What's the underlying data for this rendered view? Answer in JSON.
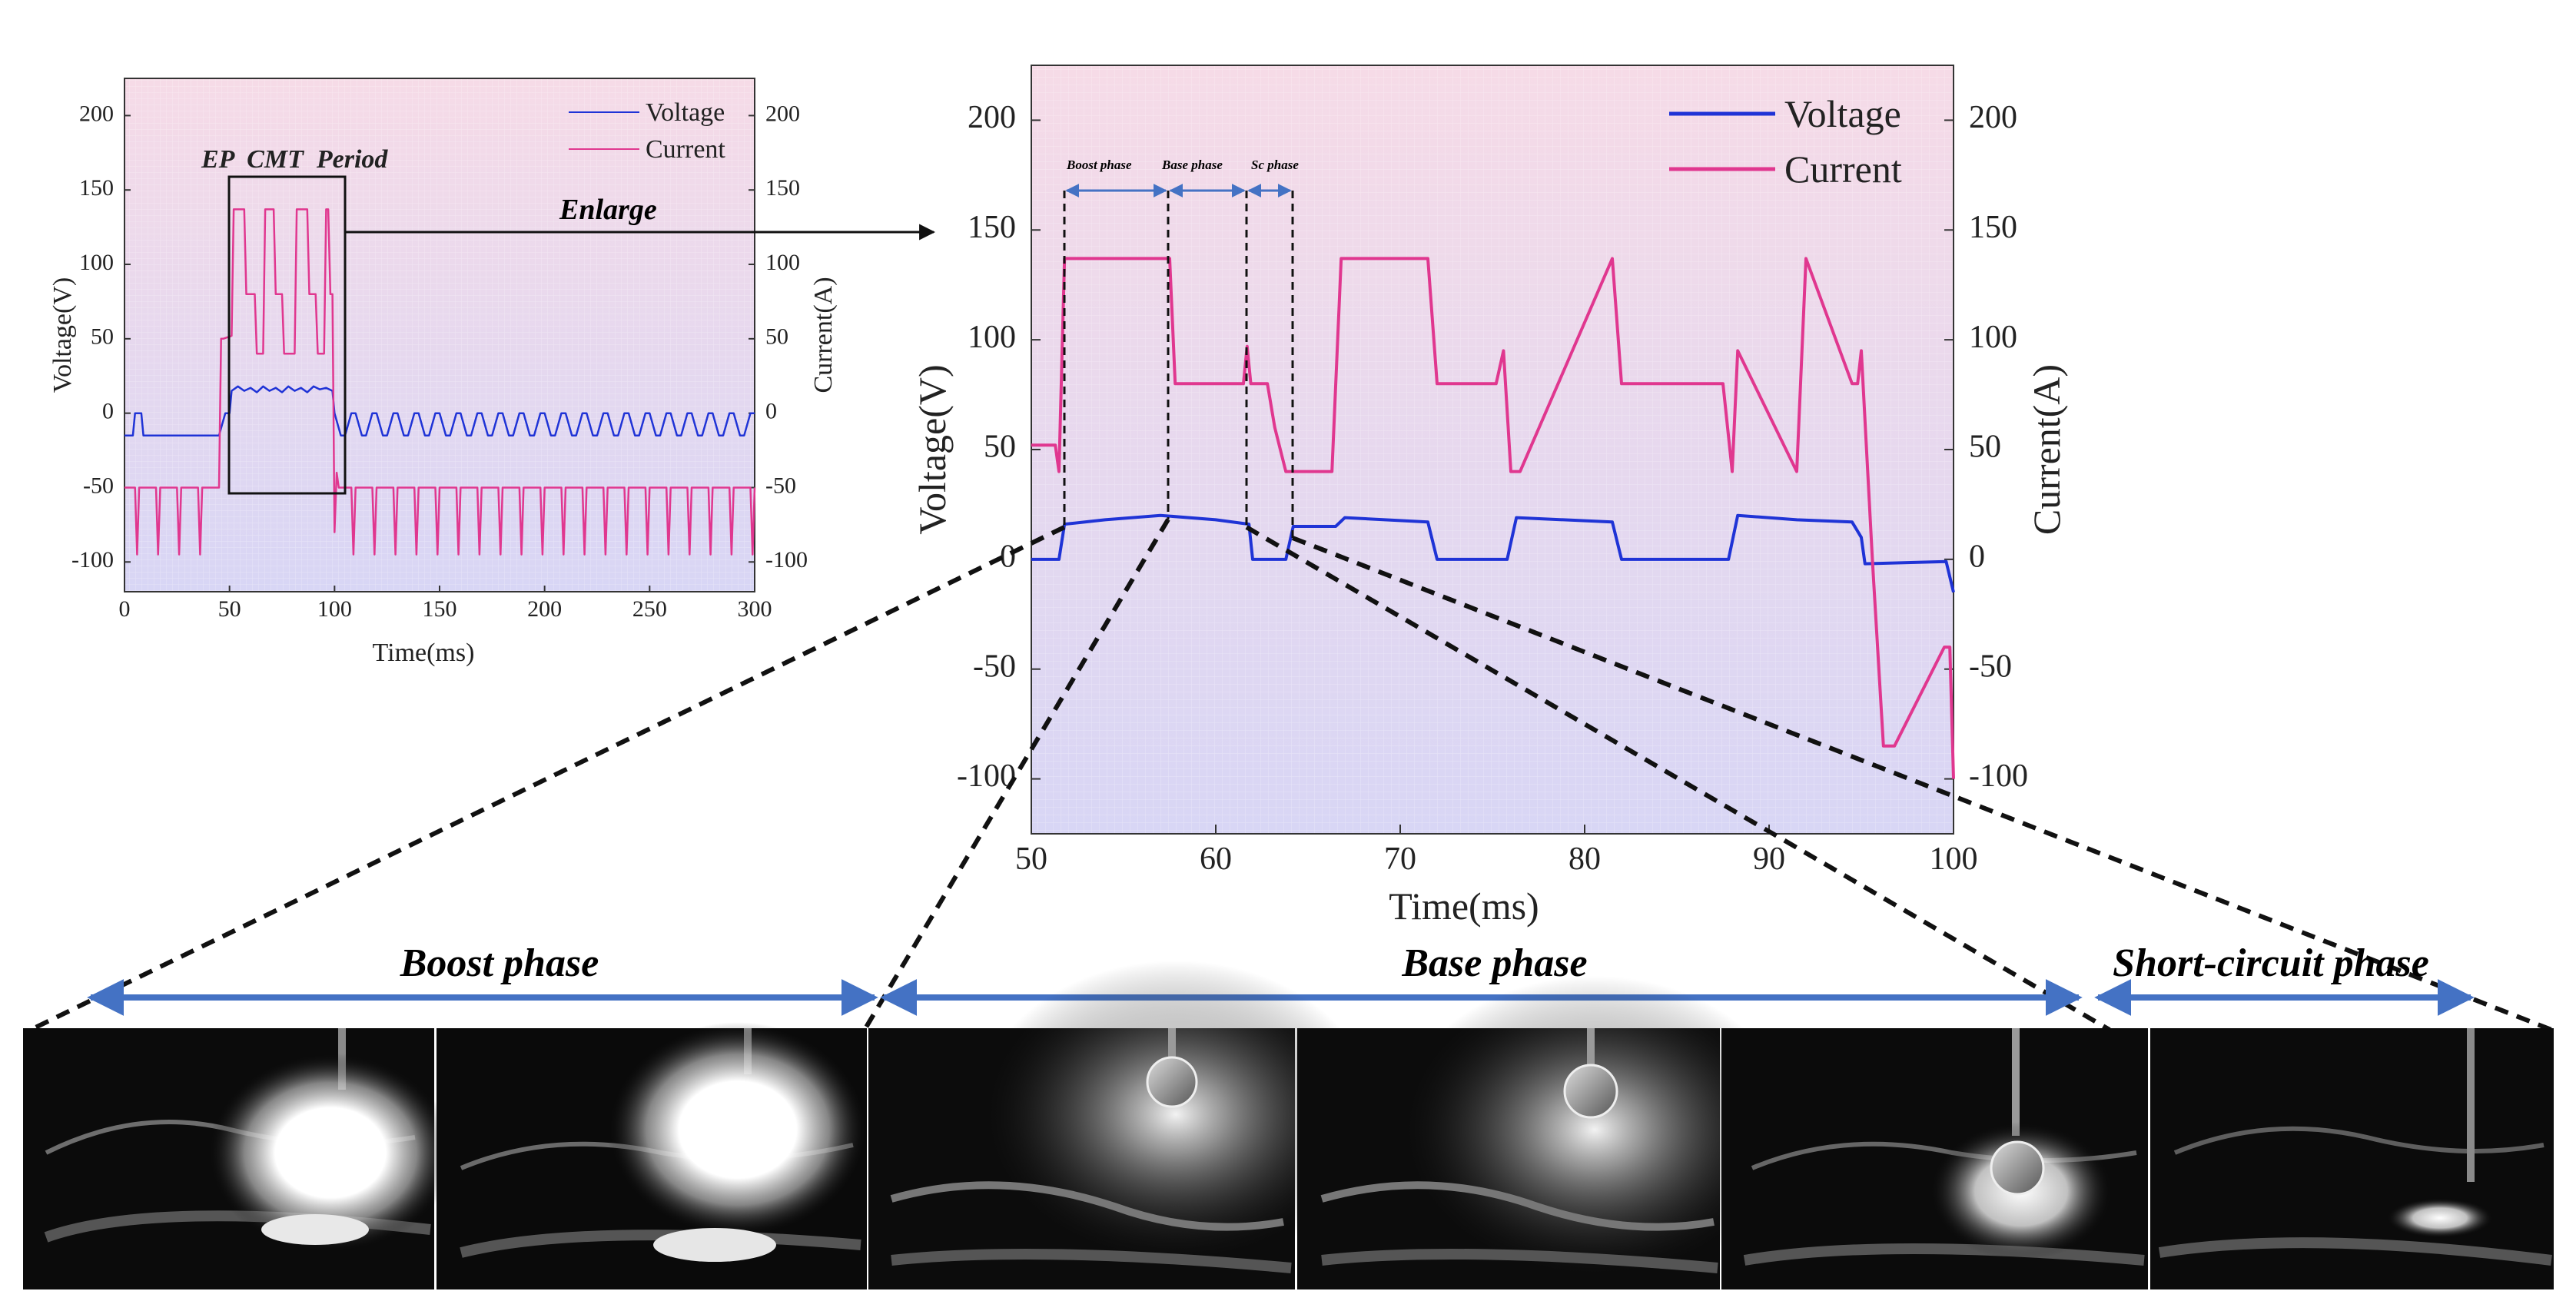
{
  "colors": {
    "voltage": "#1f33d6",
    "current": "#e0378f",
    "arrow": "#4472c4",
    "dashed": "#111111"
  },
  "annotations": {
    "ep_cmt_period": "EP  CMT  Period",
    "enlarge": "Enlarge",
    "boost_small": "Boost phase",
    "base_small": "Base phase",
    "sc_small": "Sc phase",
    "boost_phase": "Boost phase",
    "base_phase": "Base phase",
    "short_circuit_phase": "Short-circuit phase"
  },
  "chart_data": [
    {
      "type": "line",
      "xlabel": "Time(ms)",
      "ylabel": "Voltage(V)",
      "y2label": "Current(A)",
      "xlim": [
        0,
        300
      ],
      "ylim": [
        -120,
        225
      ],
      "y2lim": [
        -120,
        225
      ],
      "x_ticks": [
        "0",
        "50",
        "100",
        "150",
        "200",
        "250",
        "300"
      ],
      "y_ticks": [
        "200",
        "150",
        "100",
        "50",
        "0",
        "-50",
        "-100"
      ],
      "y2_ticks": [
        "200",
        "150",
        "100",
        "50",
        "0",
        "-50",
        "-100"
      ],
      "legend": {
        "placement": "top-right",
        "entries": [
          "Voltage",
          "Current"
        ]
      },
      "grid": true,
      "series": [
        {
          "name": "Voltage",
          "x": [
            0,
            4,
            5,
            8,
            9,
            45,
            48,
            50,
            51,
            54,
            57,
            60,
            63,
            66,
            69,
            72,
            75,
            78,
            81,
            84,
            87,
            90,
            93,
            96,
            99,
            100,
            103,
            105,
            108,
            110,
            113,
            115,
            118,
            120,
            123,
            125,
            128,
            130,
            133,
            135,
            138,
            140,
            143,
            145,
            148,
            150,
            153,
            155,
            158,
            160,
            163,
            165,
            168,
            170,
            173,
            175,
            178,
            180,
            183,
            185,
            188,
            190,
            193,
            195,
            198,
            200,
            203,
            205,
            208,
            210,
            213,
            215,
            218,
            220,
            223,
            225,
            228,
            230,
            233,
            235,
            238,
            240,
            243,
            245,
            248,
            250,
            253,
            255,
            258,
            260,
            263,
            265,
            268,
            270,
            273,
            275,
            278,
            280,
            283,
            285,
            288,
            290,
            293,
            295,
            298,
            300
          ],
          "y": [
            -15,
            -15,
            0,
            0,
            -15,
            -15,
            0,
            0,
            15,
            18,
            15,
            17,
            14,
            18,
            15,
            17,
            14,
            18,
            15,
            17,
            14,
            18,
            16,
            17,
            15,
            0,
            -15,
            -15,
            0,
            0,
            -15,
            -15,
            0,
            0,
            -15,
            -15,
            0,
            0,
            -15,
            -15,
            0,
            0,
            -15,
            -15,
            0,
            0,
            -15,
            -15,
            0,
            0,
            -15,
            -15,
            0,
            0,
            -15,
            -15,
            0,
            0,
            -15,
            -15,
            0,
            0,
            -15,
            -15,
            0,
            0,
            -15,
            -15,
            0,
            0,
            -15,
            -15,
            0,
            0,
            -15,
            -15,
            0,
            0,
            -15,
            -15,
            0,
            0,
            -15,
            -15,
            0,
            0,
            -15,
            -15,
            0,
            0,
            -15,
            -15,
            0,
            0,
            -15,
            -15,
            0,
            0,
            -15,
            -15,
            0,
            0,
            -15,
            -15,
            0,
            0
          ]
        },
        {
          "name": "Current",
          "x": [
            0,
            5,
            6,
            7,
            15,
            16,
            17,
            25,
            26,
            27,
            35,
            36,
            37,
            45,
            46,
            47,
            51,
            52,
            57,
            58,
            62,
            63,
            64,
            66,
            67,
            71,
            72,
            75,
            76,
            81,
            82,
            87,
            88,
            91,
            92,
            95,
            96,
            97,
            98,
            99,
            100,
            101,
            102,
            108,
            109,
            110,
            118,
            119,
            120,
            128,
            129,
            130,
            138,
            139,
            140,
            148,
            149,
            150,
            158,
            159,
            160,
            168,
            169,
            170,
            178,
            179,
            180,
            188,
            189,
            190,
            198,
            199,
            200,
            208,
            209,
            210,
            218,
            219,
            220,
            228,
            229,
            230,
            238,
            239,
            240,
            248,
            249,
            250,
            258,
            259,
            260,
            268,
            269,
            270,
            278,
            279,
            280,
            288,
            289,
            290,
            298,
            299,
            300
          ],
          "y": [
            -50,
            -50,
            -95,
            -50,
            -50,
            -95,
            -50,
            -50,
            -95,
            -50,
            -50,
            -95,
            -50,
            -50,
            50,
            50,
            52,
            137,
            137,
            80,
            80,
            40,
            40,
            40,
            137,
            137,
            80,
            80,
            40,
            40,
            137,
            137,
            80,
            80,
            40,
            40,
            137,
            137,
            80,
            80,
            -80,
            -40,
            -50,
            -50,
            -95,
            -50,
            -50,
            -95,
            -50,
            -50,
            -95,
            -50,
            -50,
            -95,
            -50,
            -50,
            -95,
            -50,
            -50,
            -95,
            -50,
            -50,
            -95,
            -50,
            -50,
            -95,
            -50,
            -50,
            -95,
            -50,
            -50,
            -95,
            -50,
            -50,
            -95,
            -50,
            -50,
            -95,
            -50,
            -50,
            -95,
            -50,
            -50,
            -95,
            -50,
            -50,
            -95,
            -50,
            -50,
            -95,
            -50,
            -50,
            -95,
            -50,
            -50,
            -95,
            -50,
            -50,
            -95,
            -50,
            -50,
            -95,
            -50
          ]
        }
      ]
    },
    {
      "type": "line",
      "xlabel": "Time(ms)",
      "ylabel": "Voltage(V)",
      "y2label": "Current(A)",
      "xlim": [
        50,
        100
      ],
      "ylim": [
        -125,
        225
      ],
      "y2lim": [
        -125,
        225
      ],
      "x_ticks": [
        "50",
        "60",
        "70",
        "80",
        "90",
        "100"
      ],
      "y_ticks": [
        "200",
        "150",
        "100",
        "50",
        "0",
        "-50",
        "-100"
      ],
      "y2_ticks": [
        "200",
        "150",
        "100",
        "50",
        "0",
        "-50",
        "-100"
      ],
      "legend": {
        "placement": "top-right",
        "entries": [
          "Voltage",
          "Current"
        ]
      },
      "grid": true,
      "series": [
        {
          "name": "Voltage",
          "x": [
            50,
            51.5,
            51.8,
            54,
            57,
            60,
            61.8,
            62,
            63.8,
            64.2,
            66.5,
            67,
            71.5,
            72,
            75.8,
            76.3,
            81.5,
            82,
            87.8,
            88.3,
            91.5,
            94.5,
            95,
            95.2,
            99.6,
            100
          ],
          "y": [
            0,
            0,
            16,
            18,
            20,
            18,
            16,
            0,
            0,
            15,
            15,
            19,
            17,
            0,
            0,
            19,
            17,
            0,
            0,
            20,
            18,
            17,
            10,
            -2,
            -1,
            -15
          ]
        },
        {
          "name": "Current",
          "x": [
            50,
            51.3,
            51.5,
            51.8,
            57.5,
            57.8,
            61.5,
            61.7,
            61.9,
            62.8,
            63.2,
            63.8,
            64.5,
            66.3,
            66.8,
            71.5,
            72,
            75.2,
            75.6,
            76,
            76.5,
            81.5,
            82,
            87.5,
            88,
            88.3,
            91.5,
            92,
            94.5,
            94.8,
            95,
            95.6,
            96.2,
            96.8,
            99.5,
            99.8,
            100
          ],
          "y": [
            52,
            52,
            40,
            137,
            137,
            80,
            80,
            97,
            80,
            80,
            60,
            40,
            40,
            40,
            137,
            137,
            80,
            80,
            95,
            40,
            40,
            137,
            80,
            80,
            40,
            95,
            40,
            137,
            80,
            80,
            95,
            0,
            -85,
            -85,
            -40,
            -40,
            -100
          ]
        }
      ]
    }
  ]
}
